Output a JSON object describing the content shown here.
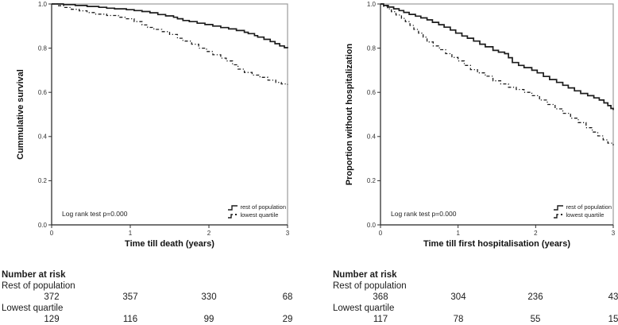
{
  "figure": {
    "background": "#ffffff"
  },
  "colors": {
    "curve": "#1c1c1c",
    "frame": "#9b9b9b",
    "axis": "#2e2e2e",
    "text": "#1c1c1c"
  },
  "chart_data": [
    {
      "type": "line",
      "subtype": "kaplan-meier-step",
      "title": "",
      "xlabel": "Time till death (years)",
      "ylabel": "Cummulative survival",
      "xlim": [
        0,
        3
      ],
      "ylim": [
        0.0,
        1.0
      ],
      "xticks": [
        "0",
        "1",
        "2",
        "3"
      ],
      "yticks": [
        "1.0",
        "0.8",
        "0.6",
        "0.4",
        "0.2",
        "0.0"
      ],
      "grid": false,
      "legend_position": "inside-bottom-right",
      "annotation": "Log rank test p=0.000",
      "legend": [
        {
          "label": "rest of population",
          "style": "solid"
        },
        {
          "label": "lowest quartile",
          "style": "dash-dot"
        }
      ],
      "series": [
        {
          "name": "rest of population",
          "style": "solid",
          "points": [
            [
              0,
              1.0
            ],
            [
              0.15,
              0.997
            ],
            [
              0.3,
              0.993
            ],
            [
              0.45,
              0.989
            ],
            [
              0.6,
              0.985
            ],
            [
              0.7,
              0.981
            ],
            [
              0.8,
              0.978
            ],
            [
              0.95,
              0.974
            ],
            [
              1.05,
              0.97
            ],
            [
              1.15,
              0.966
            ],
            [
              1.25,
              0.96
            ],
            [
              1.35,
              0.952
            ],
            [
              1.45,
              0.946
            ],
            [
              1.55,
              0.94
            ],
            [
              1.6,
              0.933
            ],
            [
              1.67,
              0.925
            ],
            [
              1.75,
              0.92
            ],
            [
              1.85,
              0.913
            ],
            [
              1.95,
              0.907
            ],
            [
              2.05,
              0.9
            ],
            [
              2.15,
              0.893
            ],
            [
              2.25,
              0.887
            ],
            [
              2.35,
              0.88
            ],
            [
              2.45,
              0.872
            ],
            [
              2.5,
              0.866
            ],
            [
              2.58,
              0.857
            ],
            [
              2.62,
              0.85
            ],
            [
              2.7,
              0.84
            ],
            [
              2.78,
              0.83
            ],
            [
              2.84,
              0.82
            ],
            [
              2.9,
              0.81
            ],
            [
              2.96,
              0.802
            ],
            [
              3,
              0.8
            ]
          ]
        },
        {
          "name": "lowest quartile",
          "style": "dash-dot",
          "points": [
            [
              0,
              1.0
            ],
            [
              0.08,
              0.992
            ],
            [
              0.16,
              0.984
            ],
            [
              0.25,
              0.976
            ],
            [
              0.35,
              0.969
            ],
            [
              0.45,
              0.961
            ],
            [
              0.55,
              0.954
            ],
            [
              0.7,
              0.948
            ],
            [
              0.85,
              0.94
            ],
            [
              0.95,
              0.933
            ],
            [
              1.05,
              0.92
            ],
            [
              1.15,
              0.905
            ],
            [
              1.22,
              0.894
            ],
            [
              1.3,
              0.885
            ],
            [
              1.4,
              0.875
            ],
            [
              1.5,
              0.862
            ],
            [
              1.6,
              0.845
            ],
            [
              1.67,
              0.832
            ],
            [
              1.78,
              0.818
            ],
            [
              1.87,
              0.8
            ],
            [
              1.97,
              0.785
            ],
            [
              2.05,
              0.77
            ],
            [
              2.15,
              0.755
            ],
            [
              2.22,
              0.742
            ],
            [
              2.3,
              0.725
            ],
            [
              2.37,
              0.705
            ],
            [
              2.45,
              0.69
            ],
            [
              2.55,
              0.678
            ],
            [
              2.65,
              0.668
            ],
            [
              2.75,
              0.655
            ],
            [
              2.85,
              0.645
            ],
            [
              2.92,
              0.638
            ],
            [
              3,
              0.635
            ]
          ]
        }
      ]
    },
    {
      "type": "line",
      "subtype": "kaplan-meier-step",
      "title": "",
      "xlabel": "Time till first hospitalisation (years)",
      "ylabel": "Proportion without hospitalization",
      "xlim": [
        0,
        3
      ],
      "ylim": [
        0.0,
        1.0
      ],
      "xticks": [
        "0",
        "1",
        "2",
        "3"
      ],
      "yticks": [
        "1.0",
        "0.8",
        "0.6",
        "0.4",
        "0.2",
        "0.0"
      ],
      "grid": false,
      "legend_position": "inside-bottom-right",
      "annotation": "Log rank test p=0.000",
      "legend": [
        {
          "label": "rest of population",
          "style": "solid"
        },
        {
          "label": "lowest quartile",
          "style": "dash-dot"
        }
      ],
      "series": [
        {
          "name": "rest of population",
          "style": "solid",
          "points": [
            [
              0,
              1.0
            ],
            [
              0.04,
              0.993
            ],
            [
              0.1,
              0.986
            ],
            [
              0.17,
              0.978
            ],
            [
              0.24,
              0.97
            ],
            [
              0.3,
              0.962
            ],
            [
              0.37,
              0.953
            ],
            [
              0.45,
              0.945
            ],
            [
              0.52,
              0.937
            ],
            [
              0.6,
              0.928
            ],
            [
              0.67,
              0.917
            ],
            [
              0.75,
              0.906
            ],
            [
              0.82,
              0.895
            ],
            [
              0.9,
              0.882
            ],
            [
              0.97,
              0.868
            ],
            [
              1.05,
              0.855
            ],
            [
              1.12,
              0.845
            ],
            [
              1.2,
              0.832
            ],
            [
              1.28,
              0.818
            ],
            [
              1.35,
              0.806
            ],
            [
              1.45,
              0.79
            ],
            [
              1.52,
              0.782
            ],
            [
              1.6,
              0.775
            ],
            [
              1.65,
              0.757
            ],
            [
              1.7,
              0.735
            ],
            [
              1.78,
              0.722
            ],
            [
              1.85,
              0.712
            ],
            [
              1.95,
              0.7
            ],
            [
              2.02,
              0.688
            ],
            [
              2.1,
              0.672
            ],
            [
              2.18,
              0.658
            ],
            [
              2.27,
              0.645
            ],
            [
              2.35,
              0.632
            ],
            [
              2.42,
              0.62
            ],
            [
              2.5,
              0.607
            ],
            [
              2.58,
              0.595
            ],
            [
              2.67,
              0.585
            ],
            [
              2.75,
              0.575
            ],
            [
              2.82,
              0.565
            ],
            [
              2.88,
              0.552
            ],
            [
              2.93,
              0.54
            ],
            [
              2.97,
              0.527
            ],
            [
              3,
              0.52
            ]
          ]
        },
        {
          "name": "lowest quartile",
          "style": "dash-dot",
          "points": [
            [
              0,
              1.0
            ],
            [
              0.04,
              0.99
            ],
            [
              0.09,
              0.978
            ],
            [
              0.14,
              0.965
            ],
            [
              0.2,
              0.95
            ],
            [
              0.27,
              0.935
            ],
            [
              0.32,
              0.92
            ],
            [
              0.38,
              0.903
            ],
            [
              0.43,
              0.885
            ],
            [
              0.49,
              0.868
            ],
            [
              0.55,
              0.85
            ],
            [
              0.6,
              0.828
            ],
            [
              0.68,
              0.81
            ],
            [
              0.76,
              0.793
            ],
            [
              0.84,
              0.775
            ],
            [
              0.92,
              0.758
            ],
            [
              1.0,
              0.742
            ],
            [
              1.08,
              0.722
            ],
            [
              1.16,
              0.703
            ],
            [
              1.25,
              0.688
            ],
            [
              1.35,
              0.673
            ],
            [
              1.45,
              0.652
            ],
            [
              1.55,
              0.638
            ],
            [
              1.65,
              0.623
            ],
            [
              1.75,
              0.613
            ],
            [
              1.85,
              0.6
            ],
            [
              1.95,
              0.585
            ],
            [
              2.05,
              0.565
            ],
            [
              2.15,
              0.545
            ],
            [
              2.25,
              0.525
            ],
            [
              2.35,
              0.505
            ],
            [
              2.45,
              0.483
            ],
            [
              2.55,
              0.463
            ],
            [
              2.65,
              0.44
            ],
            [
              2.73,
              0.42
            ],
            [
              2.8,
              0.403
            ],
            [
              2.87,
              0.385
            ],
            [
              2.93,
              0.37
            ],
            [
              3,
              0.36
            ]
          ]
        }
      ]
    }
  ],
  "risk_tables": [
    {
      "header": "Number at risk",
      "rows": [
        {
          "label": "Rest of population",
          "values": [
            "372",
            "357",
            "330",
            "68"
          ]
        },
        {
          "label": "Lowest quartile",
          "values": [
            "129",
            "116",
            "99",
            "29"
          ]
        }
      ]
    },
    {
      "header": "Number at risk",
      "rows": [
        {
          "label": "Rest of population",
          "values": [
            "368",
            "304",
            "236",
            "43"
          ]
        },
        {
          "label": "Lowest quartile",
          "values": [
            "117",
            "78",
            "55",
            "15"
          ]
        }
      ]
    }
  ]
}
